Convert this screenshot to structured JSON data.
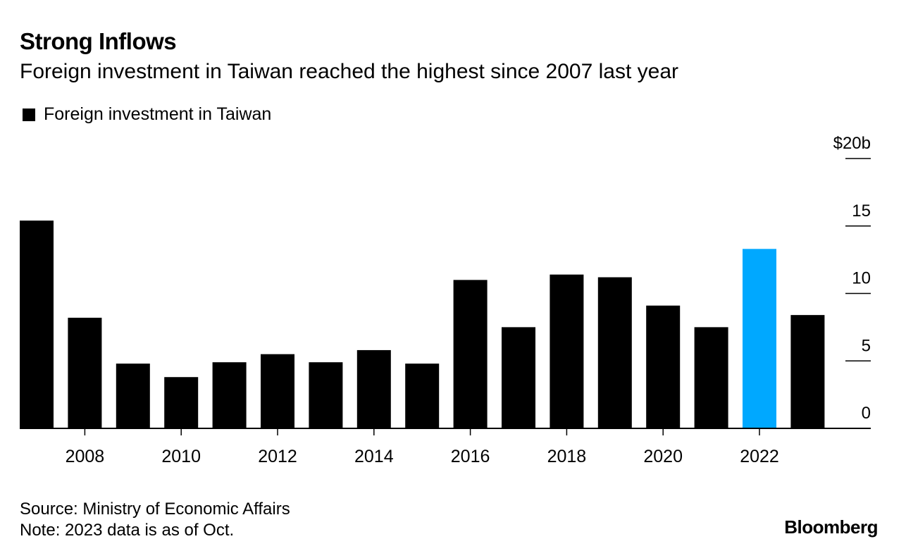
{
  "title": "Strong Inflows",
  "subtitle": "Foreign investment in Taiwan reached the highest since 2007 last year",
  "legend": {
    "label": "Foreign investment in Taiwan"
  },
  "footer": {
    "source": "Source: Ministry of Economic Affairs",
    "note": "Note: 2023 data is as of Oct."
  },
  "brand": "Bloomberg",
  "colors": {
    "bar": "#000000",
    "highlight": "#00a8ff",
    "axis": "#000000"
  },
  "chart_data": {
    "type": "bar",
    "categories": [
      "2007",
      "2008",
      "2009",
      "2010",
      "2011",
      "2012",
      "2013",
      "2014",
      "2015",
      "2016",
      "2017",
      "2018",
      "2019",
      "2020",
      "2021",
      "2022",
      "2023"
    ],
    "values": [
      15.4,
      8.2,
      4.8,
      3.8,
      4.9,
      5.5,
      4.9,
      5.8,
      4.8,
      11.0,
      7.5,
      11.4,
      11.2,
      9.1,
      7.5,
      13.3,
      8.4
    ],
    "highlight": "2022",
    "xtick_labels": [
      "2008",
      "2010",
      "2012",
      "2014",
      "2016",
      "2018",
      "2020",
      "2022"
    ],
    "ytick_labels": [
      "0",
      "5",
      "10",
      "15",
      "$20b"
    ],
    "yticks": [
      0,
      5,
      10,
      15,
      20
    ],
    "ylim": [
      0,
      20
    ],
    "xlabel": "",
    "ylabel": "",
    "title": "Strong Inflows",
    "legend": [
      "Foreign investment in Taiwan"
    ]
  }
}
